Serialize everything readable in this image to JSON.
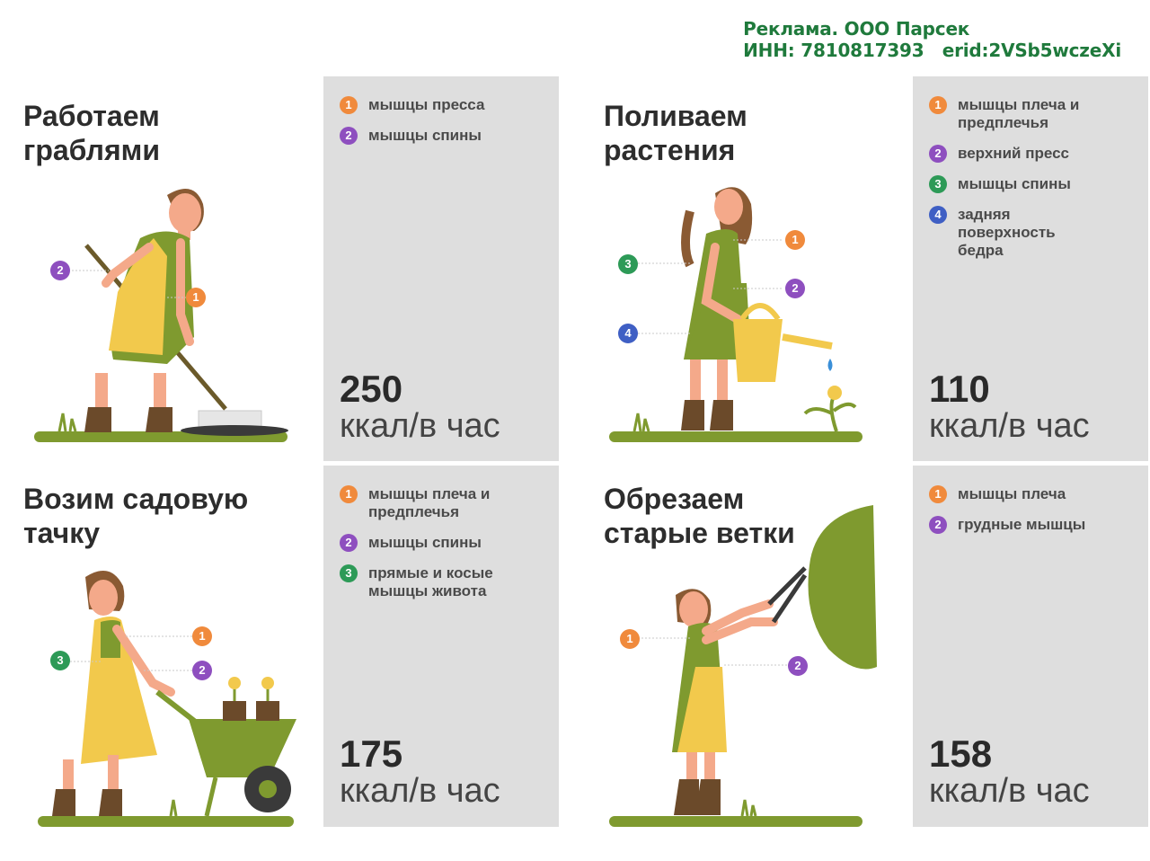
{
  "ad": {
    "line1": "Реклама. ООО Парсек",
    "line2": "ИНН: 7810817393   erid:2VSb5wczeXi"
  },
  "colors": {
    "badge1": "#f08a3c",
    "badge2": "#8e4fbf",
    "badge3": "#2d9a57",
    "badge4": "#3f5fc4",
    "panel": "#dedede",
    "dress": "#7f9a2f",
    "apron": "#f2c94c"
  },
  "cards": [
    {
      "title": "Работаем граблями",
      "muscles": [
        "мышцы пресса",
        "мышцы спины"
      ],
      "kcal": "250",
      "unit": "ккал/в час"
    },
    {
      "title": "Поливаем растения",
      "muscles": [
        "мышцы плеча и предплечья",
        "верхний пресс",
        "мышцы спины",
        "задняя поверхность бедра"
      ],
      "kcal": "110",
      "unit": "ккал/в час"
    },
    {
      "title": "Возим садовую тачку",
      "muscles": [
        "мышцы плеча и предплечья",
        "мышцы спины",
        "прямые и косые мышцы живота"
      ],
      "kcal": "175",
      "unit": "ккал/в час"
    },
    {
      "title": "Обрезаем старые ветки",
      "muscles": [
        "мышцы плеча",
        "грудные мышцы"
      ],
      "kcal": "158",
      "unit": "ккал/в час"
    }
  ],
  "badges": [
    "1",
    "2",
    "3",
    "4"
  ]
}
